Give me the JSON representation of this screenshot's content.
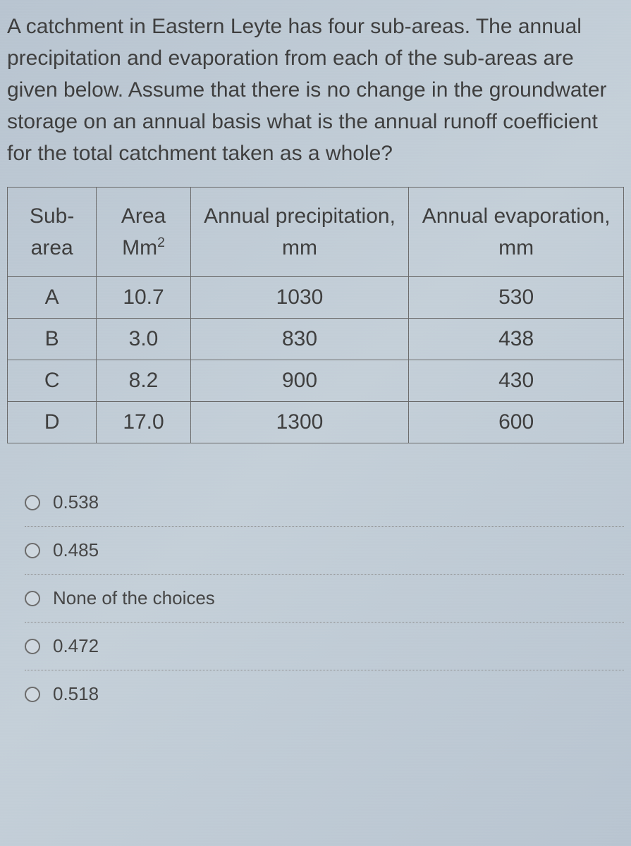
{
  "question": {
    "text": "A catchment in Eastern Leyte has four sub-areas. The annual precipitation and evaporation from each of the sub-areas are given below. Assume that there is no change in the groundwater storage on an annual basis what is the annual runoff coefficient for the total catchment taken as a whole?",
    "text_fontsize": 30,
    "text_color": "#3d3d3d"
  },
  "table": {
    "type": "table",
    "columns": [
      {
        "label": "Sub-area",
        "width": "22%"
      },
      {
        "label_html": "Area Mm",
        "sup": "2",
        "width": "24%"
      },
      {
        "label": "Annual precipitation, mm",
        "width": "27%"
      },
      {
        "label": "Annual evaporation, mm",
        "width": "27%"
      }
    ],
    "rows": [
      [
        "A",
        "10.7",
        "1030",
        "530"
      ],
      [
        "B",
        "3.0",
        "830",
        "438"
      ],
      [
        "C",
        "8.2",
        "900",
        "430"
      ],
      [
        "D",
        "17.0",
        "1300",
        "600"
      ]
    ],
    "border_color": "#6a6a6a",
    "cell_fontsize": 30,
    "cell_color": "#3d3d3d"
  },
  "options": [
    {
      "label": "0.538"
    },
    {
      "label": "0.485"
    },
    {
      "label": "None of the choices"
    },
    {
      "label": "0.472"
    },
    {
      "label": "0.518"
    }
  ],
  "styling": {
    "background_gradient": [
      "#b8c4d0",
      "#c4cfd8",
      "#b8c4d0"
    ],
    "option_fontsize": 26,
    "option_color": "#444444",
    "radio_border_color": "#6a6a6a",
    "divider_color": "#888888"
  }
}
